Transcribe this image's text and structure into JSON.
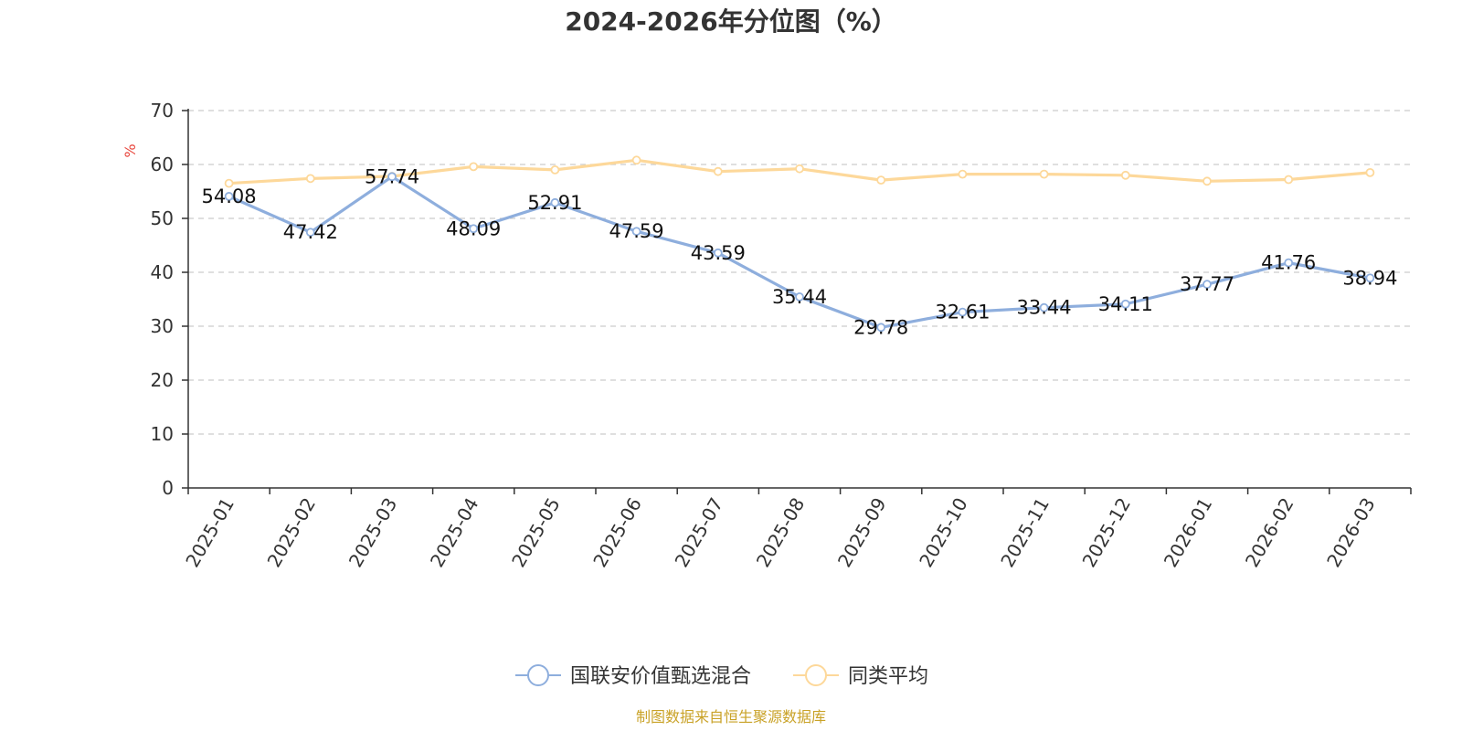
{
  "chart_data": {
    "type": "line",
    "title": "2024-2026年分位图（%）",
    "ylabel": "%",
    "ylim": [
      0,
      70
    ],
    "yticks": [
      0,
      10,
      20,
      30,
      40,
      50,
      60,
      70
    ],
    "grid": true,
    "legend_position": "bottom",
    "categories": [
      "2025-01",
      "2025-02",
      "2025-03",
      "2025-04",
      "2025-05",
      "2025-06",
      "2025-07",
      "2025-08",
      "2025-09",
      "2025-10",
      "2025-11",
      "2025-12",
      "2026-01",
      "2026-02",
      "2026-03"
    ],
    "series": [
      {
        "name": "国联安价值甄选混合",
        "color": "#8eaedd",
        "show_labels": true,
        "values": [
          54.08,
          47.42,
          57.74,
          48.09,
          52.91,
          47.59,
          43.59,
          35.44,
          29.78,
          32.61,
          33.44,
          34.11,
          37.77,
          41.76,
          38.94
        ]
      },
      {
        "name": "同类平均",
        "color": "#fdd89a",
        "show_labels": false,
        "values": [
          56.5,
          57.4,
          57.8,
          59.6,
          59.0,
          60.8,
          58.7,
          59.2,
          57.1,
          58.2,
          58.2,
          58.0,
          56.9,
          57.2,
          58.5
        ]
      }
    ]
  },
  "source_note": "制图数据来自恒生聚源数据库",
  "colors": {
    "ylabel": "#e8453c",
    "source": "#c9a227",
    "axis": "#333333",
    "grid": "#cccccc"
  }
}
